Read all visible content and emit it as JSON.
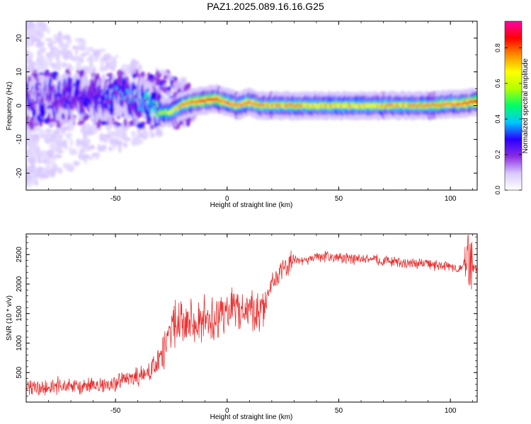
{
  "figure": {
    "title": "PAZ1.2025.089.16.16.G25"
  },
  "chart_data": [
    {
      "type": "heatmap",
      "xlabel": "Height of straight line (km)",
      "ylabel": "Frequency (Hz)",
      "xlim": [
        -90,
        112
      ],
      "ylim": [
        -25,
        25
      ],
      "xticks": [
        -50,
        0,
        50,
        100
      ],
      "yticks": [
        -20,
        -10,
        0,
        10,
        20
      ],
      "colorbar": {
        "label": "Normalized spectral amplitude",
        "range": [
          0.0,
          0.95
        ],
        "ticks": [
          0.0,
          0.2,
          0.4,
          0.6,
          0.8
        ],
        "colormap": [
          "#ffffff",
          "#d9c8ff",
          "#8a2be2",
          "#2a00ff",
          "#00c8ff",
          "#00ff66",
          "#b4ff00",
          "#ffff00",
          "#ff8c00",
          "#ff0000",
          "#ff00aa"
        ]
      },
      "ridge": {
        "x": [
          -90,
          -80,
          -70,
          -60,
          -50,
          -40,
          -35,
          -30,
          -25,
          -20,
          -15,
          -10,
          -5,
          0,
          5,
          10,
          15,
          20,
          30,
          40,
          50,
          60,
          70,
          80,
          90,
          100,
          105,
          110,
          112
        ],
        "freq": [
          2,
          2,
          3,
          2,
          3,
          2,
          0.5,
          -2,
          -2,
          0,
          1,
          1.5,
          2,
          1,
          0,
          1,
          0,
          0,
          0,
          0,
          0,
          0,
          0,
          0,
          0,
          0.5,
          0.5,
          1,
          1
        ],
        "amplitude": [
          0.2,
          0.25,
          0.3,
          0.3,
          0.35,
          0.4,
          0.45,
          0.55,
          0.65,
          0.75,
          0.8,
          0.85,
          0.85,
          0.8,
          0.75,
          0.8,
          0.75,
          0.7,
          0.75,
          0.7,
          0.72,
          0.7,
          0.72,
          0.72,
          0.75,
          0.78,
          0.8,
          0.85,
          0.85
        ]
      }
    },
    {
      "type": "line",
      "xlabel": "Height of straight line (km)",
      "ylabel": "SNR (10 * v/v)",
      "xlim": [
        -90,
        112
      ],
      "ylim": [
        0,
        2850
      ],
      "xticks": [
        -50,
        0,
        50,
        100
      ],
      "yticks": [
        500,
        1000,
        1500,
        2000,
        2500
      ],
      "series": [
        {
          "color": "#e83030",
          "x": [
            -90,
            -85,
            -80,
            -75,
            -70,
            -65,
            -60,
            -55,
            -50,
            -45,
            -40,
            -35,
            -30,
            -28,
            -25,
            -20,
            -15,
            -10,
            -5,
            0,
            5,
            10,
            15,
            18,
            20,
            25,
            30,
            35,
            40,
            45,
            50,
            55,
            60,
            65,
            70,
            75,
            80,
            85,
            90,
            95,
            100,
            105,
            108,
            110,
            112
          ],
          "y": [
            230,
            250,
            230,
            280,
            260,
            250,
            290,
            270,
            320,
            380,
            420,
            500,
            700,
            900,
            1250,
            1500,
            1300,
            1450,
            1400,
            1500,
            1650,
            1500,
            1600,
            1800,
            2000,
            2250,
            2400,
            2400,
            2450,
            2480,
            2450,
            2420,
            2420,
            2420,
            2400,
            2380,
            2350,
            2350,
            2350,
            2300,
            2300,
            2250,
            2400,
            2250,
            2250
          ]
        }
      ]
    }
  ]
}
